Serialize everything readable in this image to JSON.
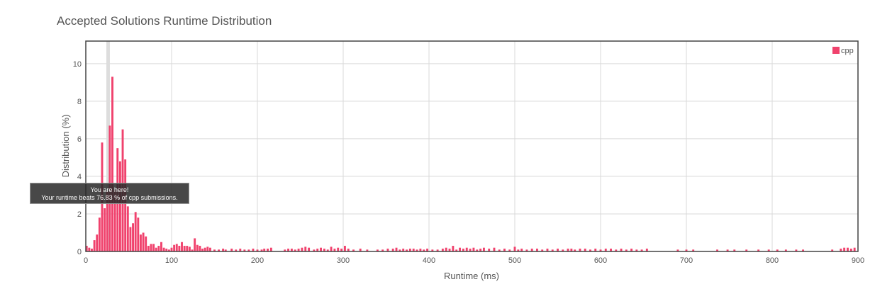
{
  "chart_data": {
    "type": "bar",
    "title": "Accepted Solutions Runtime Distribution",
    "xlabel": "Runtime (ms)",
    "ylabel": "Distribution (%)",
    "xlim": [
      0,
      900
    ],
    "ylim": [
      0,
      11.2
    ],
    "xticks": [
      "0",
      "100",
      "200",
      "300",
      "400",
      "500",
      "600",
      "700",
      "800",
      "900"
    ],
    "yticks": [
      "0",
      "2",
      "4",
      "6",
      "8",
      "10"
    ],
    "grid": true,
    "legend": {
      "position": "top-right",
      "entries": [
        "cpp"
      ]
    },
    "highlight_x": 26,
    "tooltip": {
      "line1": "You are here!",
      "line2": "Your runtime beats 76.83 % of cpp submissions."
    },
    "bar_color": "#f0426d",
    "highlight_color": "#dddddd",
    "series": [
      {
        "name": "cpp",
        "points": [
          [
            1,
            0.3
          ],
          [
            4,
            0.2
          ],
          [
            7,
            0.15
          ],
          [
            10,
            0.6
          ],
          [
            13,
            0.9
          ],
          [
            16,
            1.8
          ],
          [
            19,
            5.8
          ],
          [
            22,
            2.3
          ],
          [
            25,
            3.2
          ],
          [
            28,
            6.7
          ],
          [
            31,
            9.3
          ],
          [
            34,
            3.3
          ],
          [
            37,
            5.5
          ],
          [
            40,
            4.8
          ],
          [
            43,
            6.5
          ],
          [
            46,
            4.9
          ],
          [
            49,
            2.4
          ],
          [
            52,
            1.3
          ],
          [
            55,
            1.5
          ],
          [
            58,
            2.1
          ],
          [
            61,
            1.8
          ],
          [
            64,
            0.9
          ],
          [
            67,
            1.0
          ],
          [
            70,
            0.8
          ],
          [
            73,
            0.3
          ],
          [
            76,
            0.4
          ],
          [
            79,
            0.4
          ],
          [
            82,
            0.2
          ],
          [
            85,
            0.3
          ],
          [
            88,
            0.5
          ],
          [
            91,
            0.2
          ],
          [
            94,
            0.15
          ],
          [
            97,
            0.1
          ],
          [
            100,
            0.2
          ],
          [
            103,
            0.35
          ],
          [
            106,
            0.4
          ],
          [
            109,
            0.3
          ],
          [
            112,
            0.5
          ],
          [
            115,
            0.3
          ],
          [
            118,
            0.3
          ],
          [
            121,
            0.25
          ],
          [
            124,
            0.1
          ],
          [
            127,
            0.7
          ],
          [
            130,
            0.35
          ],
          [
            133,
            0.3
          ],
          [
            136,
            0.15
          ],
          [
            139,
            0.2
          ],
          [
            142,
            0.25
          ],
          [
            145,
            0.2
          ],
          [
            150,
            0.1
          ],
          [
            155,
            0.1
          ],
          [
            160,
            0.15
          ],
          [
            163,
            0.1
          ],
          [
            170,
            0.15
          ],
          [
            175,
            0.1
          ],
          [
            180,
            0.15
          ],
          [
            185,
            0.1
          ],
          [
            190,
            0.1
          ],
          [
            195,
            0.15
          ],
          [
            200,
            0.1
          ],
          [
            205,
            0.1
          ],
          [
            208,
            0.15
          ],
          [
            212,
            0.15
          ],
          [
            216,
            0.2
          ],
          [
            232,
            0.1
          ],
          [
            236,
            0.15
          ],
          [
            240,
            0.15
          ],
          [
            244,
            0.1
          ],
          [
            248,
            0.15
          ],
          [
            252,
            0.2
          ],
          [
            256,
            0.25
          ],
          [
            260,
            0.2
          ],
          [
            266,
            0.1
          ],
          [
            270,
            0.15
          ],
          [
            274,
            0.2
          ],
          [
            278,
            0.15
          ],
          [
            282,
            0.1
          ],
          [
            286,
            0.25
          ],
          [
            290,
            0.15
          ],
          [
            294,
            0.2
          ],
          [
            298,
            0.15
          ],
          [
            302,
            0.3
          ],
          [
            306,
            0.15
          ],
          [
            312,
            0.1
          ],
          [
            320,
            0.15
          ],
          [
            328,
            0.1
          ],
          [
            340,
            0.1
          ],
          [
            346,
            0.1
          ],
          [
            352,
            0.15
          ],
          [
            358,
            0.15
          ],
          [
            362,
            0.2
          ],
          [
            366,
            0.1
          ],
          [
            370,
            0.15
          ],
          [
            374,
            0.1
          ],
          [
            378,
            0.15
          ],
          [
            382,
            0.15
          ],
          [
            386,
            0.1
          ],
          [
            390,
            0.15
          ],
          [
            394,
            0.1
          ],
          [
            398,
            0.15
          ],
          [
            404,
            0.1
          ],
          [
            410,
            0.1
          ],
          [
            416,
            0.15
          ],
          [
            420,
            0.2
          ],
          [
            424,
            0.15
          ],
          [
            428,
            0.3
          ],
          [
            432,
            0.1
          ],
          [
            436,
            0.2
          ],
          [
            440,
            0.15
          ],
          [
            444,
            0.2
          ],
          [
            448,
            0.15
          ],
          [
            452,
            0.2
          ],
          [
            456,
            0.1
          ],
          [
            460,
            0.15
          ],
          [
            464,
            0.2
          ],
          [
            470,
            0.15
          ],
          [
            476,
            0.2
          ],
          [
            482,
            0.1
          ],
          [
            488,
            0.15
          ],
          [
            494,
            0.1
          ],
          [
            500,
            0.25
          ],
          [
            504,
            0.1
          ],
          [
            508,
            0.15
          ],
          [
            514,
            0.1
          ],
          [
            520,
            0.15
          ],
          [
            526,
            0.15
          ],
          [
            532,
            0.1
          ],
          [
            538,
            0.15
          ],
          [
            544,
            0.1
          ],
          [
            550,
            0.15
          ],
          [
            556,
            0.1
          ],
          [
            562,
            0.15
          ],
          [
            566,
            0.15
          ],
          [
            570,
            0.1
          ],
          [
            576,
            0.15
          ],
          [
            582,
            0.15
          ],
          [
            588,
            0.1
          ],
          [
            594,
            0.15
          ],
          [
            600,
            0.1
          ],
          [
            606,
            0.15
          ],
          [
            612,
            0.15
          ],
          [
            618,
            0.1
          ],
          [
            624,
            0.15
          ],
          [
            630,
            0.1
          ],
          [
            636,
            0.15
          ],
          [
            642,
            0.1
          ],
          [
            648,
            0.1
          ],
          [
            654,
            0.15
          ],
          [
            690,
            0.1
          ],
          [
            700,
            0.1
          ],
          [
            708,
            0.1
          ],
          [
            736,
            0.1
          ],
          [
            748,
            0.1
          ],
          [
            756,
            0.1
          ],
          [
            770,
            0.1
          ],
          [
            784,
            0.1
          ],
          [
            796,
            0.1
          ],
          [
            806,
            0.1
          ],
          [
            816,
            0.1
          ],
          [
            828,
            0.1
          ],
          [
            836,
            0.1
          ],
          [
            870,
            0.1
          ],
          [
            880,
            0.15
          ],
          [
            884,
            0.2
          ],
          [
            888,
            0.2
          ],
          [
            892,
            0.15
          ],
          [
            896,
            0.2
          ]
        ]
      }
    ]
  }
}
